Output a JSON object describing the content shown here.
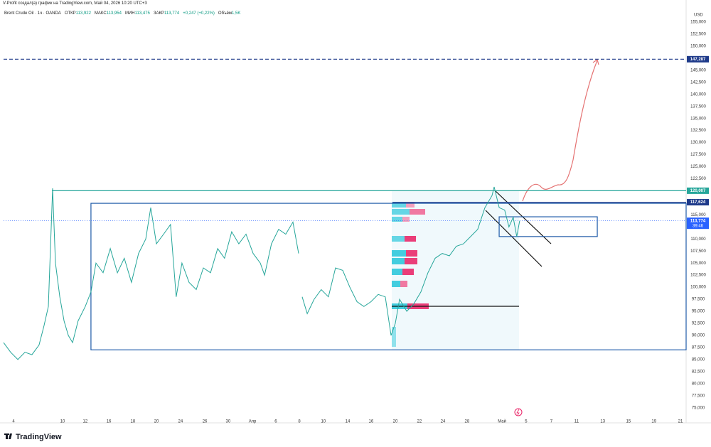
{
  "header": {
    "text": "V-Profit создал(а) график на TradingView.com, Май 04, 2026 10:20 UTC+3"
  },
  "legend": {
    "symbol": "Brent Crude Oil · 1ч · OANDA",
    "fields": [
      {
        "label": "ОТКР",
        "value": "113,922"
      },
      {
        "label": "МАКС",
        "value": "113,954"
      },
      {
        "label": "МИН",
        "value": "113,475"
      },
      {
        "label": "ЗАКР",
        "value": "113,774"
      },
      {
        "label": "",
        "value": "+0,247 (+0,22%)"
      },
      {
        "label": "Объём",
        "value": "1,5K"
      }
    ]
  },
  "logo": "TradingView",
  "chart_data": {
    "type": "line",
    "currency": "USD",
    "grid": false,
    "series": [
      {
        "name": "Brent Crude Oil",
        "color": "#26a69a",
        "x": [
          0.0,
          0.3,
          0.6,
          0.9,
          1.19,
          1.49,
          1.7,
          1.88,
          2.06,
          2.18,
          2.36,
          2.54,
          2.72,
          2.9,
          3.13,
          3.43,
          3.67,
          3.88,
          4.18,
          4.48,
          4.78,
          5.07,
          5.37,
          5.67,
          5.97,
          6.18,
          6.42,
          6.72,
          7.01,
          7.25,
          7.49,
          7.79,
          8.09,
          8.39,
          8.69,
          8.99,
          9.28,
          9.58,
          9.88,
          10.18,
          10.48,
          10.78,
          10.96,
          11.25,
          11.55,
          11.85,
          12.15,
          12.39,
          12.46,
          12.54,
          12.75,
          13.04,
          13.34,
          13.64,
          13.94,
          14.24,
          14.54,
          14.84,
          15.13,
          15.43,
          15.73,
          16.03,
          16.27,
          16.45,
          16.63,
          16.93,
          17.22,
          17.52,
          17.82,
          18.12,
          18.42,
          18.72,
          19.01,
          19.31,
          19.61,
          19.91,
          20.21,
          20.51,
          20.6,
          20.81,
          21.04,
          21.22,
          21.4,
          21.55,
          21.67
        ],
        "values": [
          88500,
          86500,
          85000,
          86500,
          86000,
          88000,
          92000,
          96000,
          120500,
          105000,
          98000,
          93000,
          90000,
          88500,
          93000,
          96000,
          99000,
          105000,
          103000,
          108000,
          103000,
          106000,
          101000,
          107000,
          110000,
          116500,
          109000,
          111000,
          113000,
          98000,
          105000,
          101000,
          99500,
          104000,
          103000,
          108000,
          106000,
          111500,
          109000,
          111000,
          107000,
          105000,
          102500,
          109000,
          112000,
          111000,
          113500,
          107000,
          null,
          98000,
          94500,
          97500,
          99500,
          98000,
          104000,
          103500,
          100000,
          97000,
          96000,
          97000,
          98500,
          98000,
          90000,
          92500,
          97500,
          95000,
          96500,
          99000,
          103000,
          106000,
          107000,
          106500,
          108500,
          109000,
          110500,
          112000,
          116500,
          119000,
          120800,
          116500,
          116000,
          112500,
          114500,
          110500,
          113774
        ]
      }
    ],
    "xlim": [
      0,
      28.66
    ],
    "ylim": [
      72600,
      157800
    ],
    "xticks": [
      {
        "value": 0.42,
        "label": "4"
      },
      {
        "value": 2.48,
        "label": "10"
      },
      {
        "value": 3.43,
        "label": "12"
      },
      {
        "value": 4.42,
        "label": "16"
      },
      {
        "value": 5.43,
        "label": "18"
      },
      {
        "value": 6.42,
        "label": "20"
      },
      {
        "value": 7.43,
        "label": "24"
      },
      {
        "value": 8.45,
        "label": "26"
      },
      {
        "value": 9.43,
        "label": "30"
      },
      {
        "value": 10.45,
        "label": "Апр"
      },
      {
        "value": 11.43,
        "label": "6"
      },
      {
        "value": 12.42,
        "label": "8"
      },
      {
        "value": 13.43,
        "label": "10"
      },
      {
        "value": 14.45,
        "label": "14"
      },
      {
        "value": 15.43,
        "label": "16"
      },
      {
        "value": 16.45,
        "label": "20"
      },
      {
        "value": 17.46,
        "label": "22"
      },
      {
        "value": 18.45,
        "label": "24"
      },
      {
        "value": 19.46,
        "label": "28"
      },
      {
        "value": 20.93,
        "label": "Май"
      },
      {
        "value": 21.94,
        "label": "5"
      },
      {
        "value": 23.0,
        "label": "7"
      },
      {
        "value": 24.06,
        "label": "11"
      },
      {
        "value": 25.16,
        "label": "13"
      },
      {
        "value": 26.24,
        "label": "15"
      },
      {
        "value": 27.31,
        "label": "19"
      },
      {
        "value": 28.42,
        "label": "21"
      }
    ],
    "yticks": [
      {
        "value": 75000,
        "label": "75,000"
      },
      {
        "value": 77500,
        "label": "77,500"
      },
      {
        "value": 80000,
        "label": "80,000"
      },
      {
        "value": 82500,
        "label": "82,500"
      },
      {
        "value": 85000,
        "label": "85,000"
      },
      {
        "value": 87500,
        "label": "87,500"
      },
      {
        "value": 90000,
        "label": "90,000"
      },
      {
        "value": 92500,
        "label": "92,500"
      },
      {
        "value": 95000,
        "label": "95,000"
      },
      {
        "value": 97500,
        "label": "97,500"
      },
      {
        "value": 100000,
        "label": "100,000"
      },
      {
        "value": 102500,
        "label": "102,500"
      },
      {
        "value": 105000,
        "label": "105,000"
      },
      {
        "value": 107500,
        "label": "107,500"
      },
      {
        "value": 110000,
        "label": "110,000"
      },
      {
        "value": 112500,
        "label": "112,500"
      },
      {
        "value": 115000,
        "label": "115,000"
      },
      {
        "value": 117500,
        "label": "117,500"
      },
      {
        "value": 120000,
        "label": "120,000"
      },
      {
        "value": 122500,
        "label": "122,500"
      },
      {
        "value": 125000,
        "label": "125,000"
      },
      {
        "value": 127500,
        "label": "127,500"
      },
      {
        "value": 130000,
        "label": "130,000"
      },
      {
        "value": 132500,
        "label": "132,500"
      },
      {
        "value": 135000,
        "label": "135,000"
      },
      {
        "value": 137500,
        "label": "137,500"
      },
      {
        "value": 140000,
        "label": "140,000"
      },
      {
        "value": 142500,
        "label": "142,500"
      },
      {
        "value": 145000,
        "label": "145,000"
      },
      {
        "value": 147500,
        "label": "147,500"
      },
      {
        "value": 150000,
        "label": "150,000"
      },
      {
        "value": 152500,
        "label": "152,500"
      },
      {
        "value": 155000,
        "label": "155,000"
      }
    ],
    "levels": [
      {
        "value": 120007,
        "label": "120,007",
        "color": "#26a69a",
        "from": 2.03
      },
      {
        "value": 117624,
        "label": "117,624",
        "color": "#1e3a8a",
        "from": 16.33
      },
      {
        "value": 147287,
        "label": "147,287",
        "color": "#1e3a8a",
        "from": 0,
        "dashed": true
      },
      {
        "value": 113774,
        "label": "113,774",
        "color": "#2962ff",
        "from": 0,
        "dotted": true,
        "countdown": "39:46"
      }
    ],
    "boxes": [
      {
        "x": [
          3.67,
          28.66
        ],
        "y": [
          87000,
          117400
        ],
        "color": "#1e5aa8"
      },
      {
        "x": [
          20.81,
          24.93
        ],
        "y": [
          110500,
          114600
        ],
        "color": "#1e5aa8"
      }
    ]
  }
}
